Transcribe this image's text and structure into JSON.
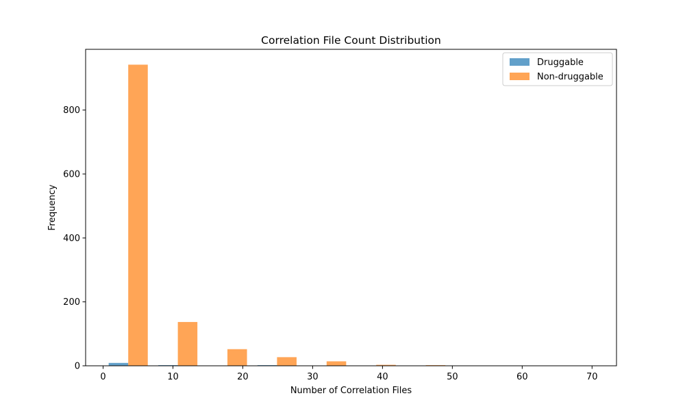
{
  "chart_data": {
    "type": "bar",
    "title": "Correlation File Count Distribution",
    "xlabel": "Number of Correlation Files",
    "ylabel": "Frequency",
    "xlim": [
      -2.5,
      73.5
    ],
    "ylim": [
      0,
      990
    ],
    "xticks": [
      0,
      10,
      20,
      30,
      40,
      50,
      60,
      70
    ],
    "yticks": [
      0,
      200,
      400,
      600,
      800
    ],
    "legend_position": "top-right",
    "series": [
      {
        "name": "Druggable",
        "color": "#1f77b4",
        "opacity": 0.7,
        "bars": [
          {
            "x0": 0.8,
            "x1": 3.6,
            "value": 9
          },
          {
            "x0": 7.9,
            "x1": 10.7,
            "value": 2
          },
          {
            "x0": 15.0,
            "x1": 17.8,
            "value": 0
          },
          {
            "x0": 22.1,
            "x1": 24.9,
            "value": 2
          },
          {
            "x0": 29.2,
            "x1": 32.0,
            "value": 0
          },
          {
            "x0": 36.3,
            "x1": 39.1,
            "value": 0
          },
          {
            "x0": 43.4,
            "x1": 46.2,
            "value": 0
          },
          {
            "x0": 50.5,
            "x1": 53.3,
            "value": 0
          },
          {
            "x0": 57.6,
            "x1": 60.4,
            "value": 0
          },
          {
            "x0": 64.7,
            "x1": 67.5,
            "value": 0
          }
        ]
      },
      {
        "name": "Non-druggable",
        "color": "#ff7f0e",
        "opacity": 0.7,
        "bars": [
          {
            "x0": 3.6,
            "x1": 6.4,
            "value": 942
          },
          {
            "x0": 10.7,
            "x1": 13.5,
            "value": 137
          },
          {
            "x0": 17.8,
            "x1": 20.6,
            "value": 52
          },
          {
            "x0": 24.9,
            "x1": 27.7,
            "value": 27
          },
          {
            "x0": 32.0,
            "x1": 34.8,
            "value": 14
          },
          {
            "x0": 39.1,
            "x1": 41.9,
            "value": 3
          },
          {
            "x0": 46.2,
            "x1": 49.0,
            "value": 2
          },
          {
            "x0": 53.3,
            "x1": 56.1,
            "value": 1
          },
          {
            "x0": 60.4,
            "x1": 63.2,
            "value": 1
          },
          {
            "x0": 67.5,
            "x1": 70.3,
            "value": 1
          }
        ]
      }
    ]
  }
}
